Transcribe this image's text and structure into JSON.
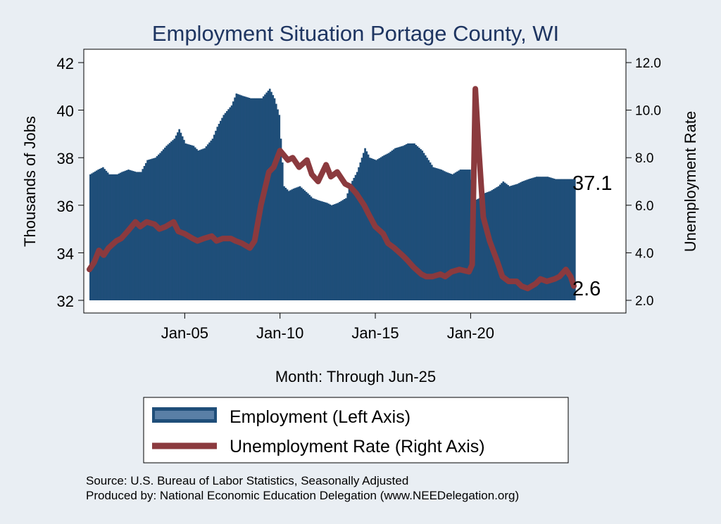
{
  "chart_data": {
    "type": "bar+line",
    "title": "Employment Situation Portage  County, WI",
    "xlabel": "Month: Through Jun-25",
    "ylabel_left": "Thousands of Jobs",
    "ylabel_right": "Unemployment Rate",
    "ylim_left": [
      32,
      42
    ],
    "ylim_right": [
      2.0,
      12.0
    ],
    "yticks_left": [
      "32",
      "34",
      "36",
      "38",
      "40",
      "42"
    ],
    "yticks_right": [
      "2.0",
      "4.0",
      "6.0",
      "8.0",
      "10.0",
      "12.0"
    ],
    "xrange": [
      "2000-01",
      "2025-06"
    ],
    "xticks": [
      {
        "date": "2005-01",
        "label": "Jan-05"
      },
      {
        "date": "2010-01",
        "label": "Jan-10"
      },
      {
        "date": "2015-01",
        "label": "Jan-15"
      },
      {
        "date": "2020-01",
        "label": "Jan-20"
      }
    ],
    "grid": false,
    "legend_position": "bottom",
    "series": [
      {
        "name": "Employment (Left Axis)",
        "type": "bar",
        "axis": "left",
        "color": "#1f4e79",
        "points": [
          [
            "2000-01",
            37.3
          ],
          [
            "2000-06",
            37.5
          ],
          [
            "2000-09",
            37.6
          ],
          [
            "2001-01",
            37.3
          ],
          [
            "2001-06",
            37.3
          ],
          [
            "2001-09",
            37.4
          ],
          [
            "2002-01",
            37.5
          ],
          [
            "2002-06",
            37.4
          ],
          [
            "2002-09",
            37.4
          ],
          [
            "2003-01",
            37.9
          ],
          [
            "2003-06",
            38.0
          ],
          [
            "2003-09",
            38.2
          ],
          [
            "2004-01",
            38.5
          ],
          [
            "2004-06",
            38.8
          ],
          [
            "2004-09",
            39.2
          ],
          [
            "2005-01",
            38.6
          ],
          [
            "2005-06",
            38.5
          ],
          [
            "2005-09",
            38.3
          ],
          [
            "2006-01",
            38.4
          ],
          [
            "2006-06",
            38.8
          ],
          [
            "2006-09",
            39.3
          ],
          [
            "2007-01",
            39.8
          ],
          [
            "2007-06",
            40.2
          ],
          [
            "2007-09",
            40.7
          ],
          [
            "2008-01",
            40.6
          ],
          [
            "2008-06",
            40.5
          ],
          [
            "2008-09",
            40.5
          ],
          [
            "2009-01",
            40.5
          ],
          [
            "2009-06",
            40.9
          ],
          [
            "2009-09",
            40.5
          ],
          [
            "2009-12",
            39.8
          ],
          [
            "2010-03",
            36.8
          ],
          [
            "2010-06",
            36.6
          ],
          [
            "2010-09",
            36.7
          ],
          [
            "2011-01",
            36.8
          ],
          [
            "2011-06",
            36.5
          ],
          [
            "2011-09",
            36.3
          ],
          [
            "2012-01",
            36.2
          ],
          [
            "2012-06",
            36.1
          ],
          [
            "2012-09",
            36.0
          ],
          [
            "2013-01",
            36.1
          ],
          [
            "2013-06",
            36.3
          ],
          [
            "2013-09",
            36.9
          ],
          [
            "2014-01",
            37.4
          ],
          [
            "2014-06",
            38.4
          ],
          [
            "2014-09",
            38.0
          ],
          [
            "2015-01",
            37.9
          ],
          [
            "2015-06",
            38.1
          ],
          [
            "2015-09",
            38.2
          ],
          [
            "2016-01",
            38.4
          ],
          [
            "2016-06",
            38.5
          ],
          [
            "2016-09",
            38.6
          ],
          [
            "2017-01",
            38.6
          ],
          [
            "2017-06",
            38.3
          ],
          [
            "2017-09",
            38.0
          ],
          [
            "2018-01",
            37.6
          ],
          [
            "2018-06",
            37.5
          ],
          [
            "2018-09",
            37.4
          ],
          [
            "2019-01",
            37.3
          ],
          [
            "2019-06",
            37.5
          ],
          [
            "2019-12",
            37.5
          ],
          [
            "2020-03",
            36.2
          ],
          [
            "2020-06",
            36.3
          ],
          [
            "2020-09",
            36.5
          ],
          [
            "2021-01",
            36.6
          ],
          [
            "2021-06",
            36.8
          ],
          [
            "2021-09",
            37.0
          ],
          [
            "2022-01",
            36.8
          ],
          [
            "2022-06",
            36.9
          ],
          [
            "2022-09",
            37.0
          ],
          [
            "2023-01",
            37.1
          ],
          [
            "2023-06",
            37.2
          ],
          [
            "2023-09",
            37.2
          ],
          [
            "2024-01",
            37.2
          ],
          [
            "2024-06",
            37.1
          ],
          [
            "2024-09",
            37.1
          ],
          [
            "2025-01",
            37.1
          ],
          [
            "2025-06",
            37.1
          ]
        ]
      },
      {
        "name": "Unemployment Rate (Right Axis)",
        "type": "line",
        "axis": "right",
        "color": "#8b3a3e",
        "points": [
          [
            "2000-01",
            3.3
          ],
          [
            "2000-04",
            3.6
          ],
          [
            "2000-07",
            4.1
          ],
          [
            "2000-10",
            3.9
          ],
          [
            "2001-01",
            4.2
          ],
          [
            "2001-06",
            4.5
          ],
          [
            "2001-09",
            4.6
          ],
          [
            "2002-01",
            4.9
          ],
          [
            "2002-06",
            5.3
          ],
          [
            "2002-09",
            5.1
          ],
          [
            "2003-01",
            5.3
          ],
          [
            "2003-06",
            5.2
          ],
          [
            "2003-09",
            5.0
          ],
          [
            "2004-01",
            5.1
          ],
          [
            "2004-06",
            5.3
          ],
          [
            "2004-09",
            4.9
          ],
          [
            "2005-01",
            4.8
          ],
          [
            "2005-06",
            4.6
          ],
          [
            "2005-09",
            4.5
          ],
          [
            "2006-01",
            4.6
          ],
          [
            "2006-06",
            4.7
          ],
          [
            "2006-09",
            4.5
          ],
          [
            "2007-01",
            4.6
          ],
          [
            "2007-06",
            4.6
          ],
          [
            "2007-09",
            4.5
          ],
          [
            "2008-01",
            4.4
          ],
          [
            "2008-06",
            4.2
          ],
          [
            "2008-09",
            4.5
          ],
          [
            "2009-01",
            6.0
          ],
          [
            "2009-06",
            7.4
          ],
          [
            "2009-09",
            7.6
          ],
          [
            "2010-01",
            8.3
          ],
          [
            "2010-06",
            7.9
          ],
          [
            "2010-09",
            8.0
          ],
          [
            "2011-01",
            7.6
          ],
          [
            "2011-06",
            7.9
          ],
          [
            "2011-09",
            7.3
          ],
          [
            "2012-01",
            7.0
          ],
          [
            "2012-06",
            7.7
          ],
          [
            "2012-09",
            7.2
          ],
          [
            "2013-01",
            7.4
          ],
          [
            "2013-06",
            6.9
          ],
          [
            "2013-09",
            6.8
          ],
          [
            "2014-01",
            6.5
          ],
          [
            "2014-06",
            6.0
          ],
          [
            "2014-09",
            5.6
          ],
          [
            "2015-01",
            5.1
          ],
          [
            "2015-06",
            4.8
          ],
          [
            "2015-09",
            4.4
          ],
          [
            "2016-01",
            4.2
          ],
          [
            "2016-06",
            3.9
          ],
          [
            "2016-09",
            3.7
          ],
          [
            "2017-01",
            3.4
          ],
          [
            "2017-06",
            3.1
          ],
          [
            "2017-09",
            3.0
          ],
          [
            "2018-01",
            3.0
          ],
          [
            "2018-06",
            3.1
          ],
          [
            "2018-09",
            3.0
          ],
          [
            "2019-01",
            3.2
          ],
          [
            "2019-06",
            3.3
          ],
          [
            "2019-12",
            3.2
          ],
          [
            "2020-02",
            3.5
          ],
          [
            "2020-04",
            10.9
          ],
          [
            "2020-06",
            8.5
          ],
          [
            "2020-09",
            5.5
          ],
          [
            "2021-01",
            4.5
          ],
          [
            "2021-06",
            3.6
          ],
          [
            "2021-09",
            3.0
          ],
          [
            "2022-01",
            2.8
          ],
          [
            "2022-06",
            2.8
          ],
          [
            "2022-09",
            2.6
          ],
          [
            "2023-01",
            2.5
          ],
          [
            "2023-06",
            2.7
          ],
          [
            "2023-09",
            2.9
          ],
          [
            "2024-01",
            2.8
          ],
          [
            "2024-06",
            2.9
          ],
          [
            "2024-09",
            3.0
          ],
          [
            "2025-01",
            3.3
          ],
          [
            "2025-04",
            3.0
          ],
          [
            "2025-06",
            2.6
          ]
        ]
      }
    ],
    "end_labels": [
      {
        "series": "Employment (Left Axis)",
        "text": "37.1"
      },
      {
        "series": "Unemployment Rate (Right Axis)",
        "text": "2.6"
      }
    ],
    "source_lines": [
      "Source: U.S. Bureau of Labor Statistics, Seasonally Adjusted",
      "Produced by: National Economic Education Delegation (www.NEEDelegation.org)"
    ]
  }
}
